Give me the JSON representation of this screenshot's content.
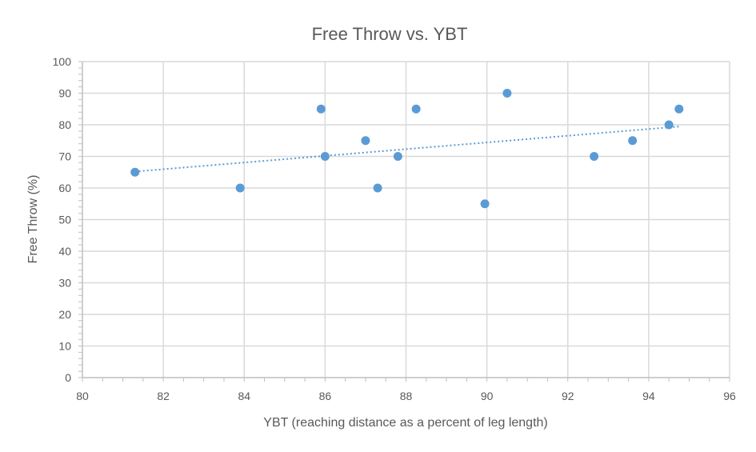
{
  "chart_data": {
    "type": "scatter",
    "title": "Free Throw vs. YBT",
    "xlabel": "YBT (reaching distance as a percent of leg length)",
    "ylabel": "Free  Throw (%)",
    "xlim": [
      80,
      96
    ],
    "ylim": [
      0,
      100
    ],
    "xticks": [
      80,
      82,
      84,
      86,
      88,
      90,
      92,
      94,
      96
    ],
    "yticks": [
      0,
      10,
      20,
      30,
      40,
      50,
      60,
      70,
      80,
      90,
      100
    ],
    "grid": true,
    "legend": "none",
    "point_color": "#5b9bd5",
    "trendline": {
      "type": "linear",
      "style": "dotted",
      "color": "#5b9bd5",
      "from": [
        81.3,
        65.2
      ],
      "to": [
        94.8,
        79.5
      ]
    },
    "series": [
      {
        "points": [
          [
            81.3,
            65
          ],
          [
            83.9,
            60
          ],
          [
            85.9,
            85
          ],
          [
            86.0,
            70
          ],
          [
            87.0,
            75
          ],
          [
            87.3,
            60
          ],
          [
            87.8,
            70
          ],
          [
            88.25,
            85
          ],
          [
            89.95,
            55
          ],
          [
            90.5,
            90
          ],
          [
            92.65,
            70
          ],
          [
            93.6,
            75
          ],
          [
            94.5,
            80
          ],
          [
            94.75,
            85
          ]
        ]
      }
    ]
  }
}
